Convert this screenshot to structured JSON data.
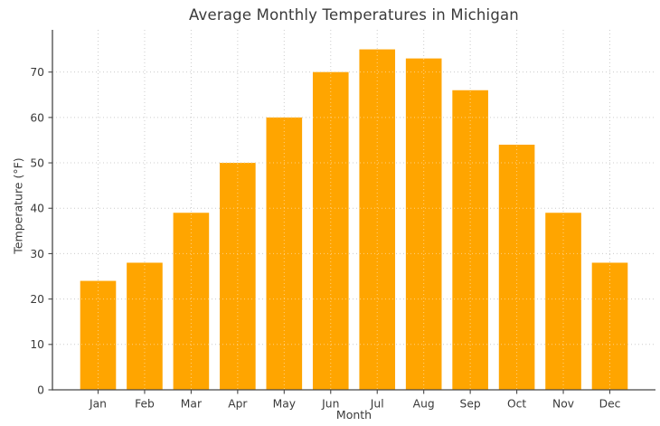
{
  "chart_data": {
    "type": "bar",
    "title": "Average Monthly Temperatures in Michigan",
    "xlabel": "Month",
    "ylabel": "Temperature (°F)",
    "categories": [
      "Jan",
      "Feb",
      "Mar",
      "Apr",
      "May",
      "Jun",
      "Jul",
      "Aug",
      "Sep",
      "Oct",
      "Nov",
      "Dec"
    ],
    "values": [
      24,
      28,
      39,
      50,
      60,
      70,
      75,
      73,
      66,
      54,
      39,
      28
    ],
    "yticks": [
      0,
      10,
      20,
      30,
      40,
      50,
      60,
      70
    ],
    "ylim": [
      0,
      79.3
    ],
    "bar_color": "#FFA500",
    "grid_color": "#CCCCCC",
    "grid_style": "dotted-both-axes",
    "spine_color": "#474747",
    "text_color": "#3A3A3A",
    "background": "#FFFFFF",
    "legend": "none"
  }
}
